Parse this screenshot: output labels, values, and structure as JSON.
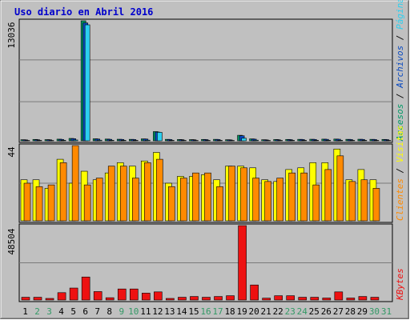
{
  "title": "Uso diario en Abril 2016",
  "colors": {
    "title": "#0000cc",
    "background": "#c0c0c0",
    "frame": "#000000",
    "accesos": "#009966",
    "paginas": "#2bd0f0",
    "archivos": "#0a4ac0",
    "visitas": "#ffff00",
    "clientes": "#ff8a00",
    "kbytes": "#ee1111",
    "weekday": "#000000",
    "weekend": "#339966"
  },
  "days": [
    "1",
    "2",
    "3",
    "4",
    "5",
    "6",
    "7",
    "8",
    "9",
    "10",
    "11",
    "12",
    "13",
    "14",
    "15",
    "16",
    "17",
    "18",
    "19",
    "20",
    "21",
    "22",
    "23",
    "24",
    "25",
    "26",
    "27",
    "28",
    "29",
    "30",
    "31"
  ],
  "weekend_days": [
    "2",
    "3",
    "9",
    "10",
    "16",
    "17",
    "23",
    "24",
    "30",
    "31"
  ],
  "panels": {
    "top": {
      "ymax_label": "13036",
      "legend": [
        {
          "text": "Accesos",
          "color": "#009966"
        },
        {
          "text": " / ",
          "color": "#000000"
        },
        {
          "text": "Archivos",
          "color": "#0a4ac0"
        },
        {
          "text": " / ",
          "color": "#000000"
        },
        {
          "text": "Páginas",
          "color": "#2bd0f0"
        }
      ]
    },
    "middle": {
      "ymax_label": "44",
      "legend": [
        {
          "text": "Clientes",
          "color": "#ff8a00"
        },
        {
          "text": " / ",
          "color": "#000000"
        },
        {
          "text": "Visitas",
          "color": "#ffff00"
        }
      ]
    },
    "bottom": {
      "ymax_label": "48504",
      "legend": [
        {
          "text": "KBytes",
          "color": "#ee1111"
        }
      ]
    }
  },
  "chart_data": [
    {
      "type": "bar",
      "categories": [
        "1",
        "2",
        "3",
        "4",
        "5",
        "6",
        "7",
        "8",
        "9",
        "10",
        "11",
        "12",
        "13",
        "14",
        "15",
        "16",
        "17",
        "18",
        "19",
        "20",
        "21",
        "22",
        "23",
        "24",
        "25",
        "26",
        "27",
        "28",
        "29",
        "30",
        "31"
      ],
      "ylim": [
        0,
        13036
      ],
      "ylabel": "Accesos / Archivos / Páginas",
      "series": [
        {
          "name": "Accesos",
          "values": [
            120,
            150,
            130,
            180,
            260,
            13036,
            220,
            190,
            170,
            160,
            210,
            1000,
            160,
            140,
            130,
            150,
            160,
            120,
            600,
            210,
            120,
            140,
            150,
            160,
            170,
            180,
            190,
            160,
            170,
            160,
            150
          ]
        },
        {
          "name": "Archivos",
          "values": [
            100,
            120,
            110,
            150,
            230,
            12800,
            190,
            160,
            150,
            140,
            190,
            950,
            140,
            120,
            110,
            130,
            140,
            100,
            550,
            180,
            100,
            120,
            130,
            140,
            150,
            160,
            170,
            140,
            150,
            140,
            130
          ]
        },
        {
          "name": "Páginas",
          "values": [
            40,
            50,
            40,
            60,
            90,
            12600,
            70,
            60,
            55,
            50,
            70,
            920,
            50,
            45,
            40,
            45,
            50,
            40,
            280,
            70,
            40,
            45,
            50,
            50,
            55,
            60,
            60,
            50,
            55,
            50,
            45
          ]
        }
      ]
    },
    {
      "type": "bar",
      "categories": [
        "1",
        "2",
        "3",
        "4",
        "5",
        "6",
        "7",
        "8",
        "9",
        "10",
        "11",
        "12",
        "13",
        "14",
        "15",
        "16",
        "17",
        "18",
        "19",
        "20",
        "21",
        "22",
        "23",
        "24",
        "25",
        "26",
        "27",
        "28",
        "29",
        "30",
        "31"
      ],
      "ylim": [
        0,
        44
      ],
      "ylabel": "Clientes / Visitas",
      "series": [
        {
          "name": "Visitas",
          "values": [
            24,
            24,
            19,
            36,
            22,
            29,
            24,
            28,
            34,
            32,
            35,
            40,
            22,
            26,
            26,
            27,
            24,
            32,
            32,
            31,
            24,
            23,
            30,
            31,
            34,
            34,
            42,
            24,
            30,
            24,
            0
          ]
        },
        {
          "name": "Clientes",
          "values": [
            22,
            20,
            21,
            34,
            44,
            21,
            25,
            32,
            32,
            25,
            34,
            36,
            20,
            25,
            28,
            28,
            20,
            32,
            31,
            25,
            23,
            25,
            28,
            28,
            21,
            30,
            38,
            23,
            24,
            19,
            0
          ]
        }
      ]
    },
    {
      "type": "bar",
      "categories": [
        "1",
        "2",
        "3",
        "4",
        "5",
        "6",
        "7",
        "8",
        "9",
        "10",
        "11",
        "12",
        "13",
        "14",
        "15",
        "16",
        "17",
        "18",
        "19",
        "20",
        "21",
        "22",
        "23",
        "24",
        "25",
        "26",
        "27",
        "28",
        "29",
        "30",
        "31"
      ],
      "ylim": [
        0,
        48504
      ],
      "ylabel": "KBytes",
      "series": [
        {
          "name": "KBytes",
          "values": [
            1800,
            1800,
            500,
            4800,
            7800,
            15000,
            5500,
            1500,
            7200,
            7200,
            4500,
            5300,
            700,
            1800,
            2300,
            1800,
            2300,
            2800,
            48504,
            9800,
            1200,
            2800,
            2800,
            1800,
            1800,
            1300,
            5300,
            1300,
            2300,
            1800,
            0
          ]
        }
      ]
    }
  ]
}
